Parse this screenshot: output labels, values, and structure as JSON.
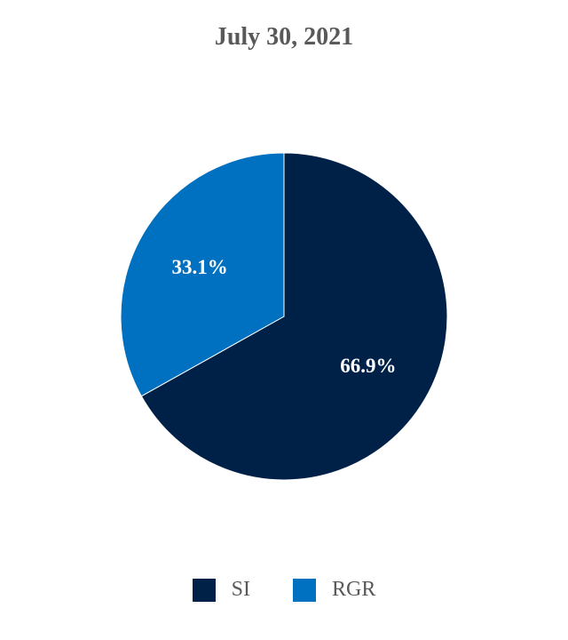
{
  "chart_data": {
    "type": "pie",
    "title": "July 30, 2021",
    "slices": [
      {
        "name": "SI",
        "value": 66.9,
        "label": "66.9%",
        "color": "#002147"
      },
      {
        "name": "RGR",
        "value": 33.1,
        "label": "33.1%",
        "color": "#0070C0"
      }
    ],
    "legend_position": "bottom",
    "label_color": "#ffffff",
    "start_angle": "12 o'clock",
    "direction": "clockwise"
  }
}
